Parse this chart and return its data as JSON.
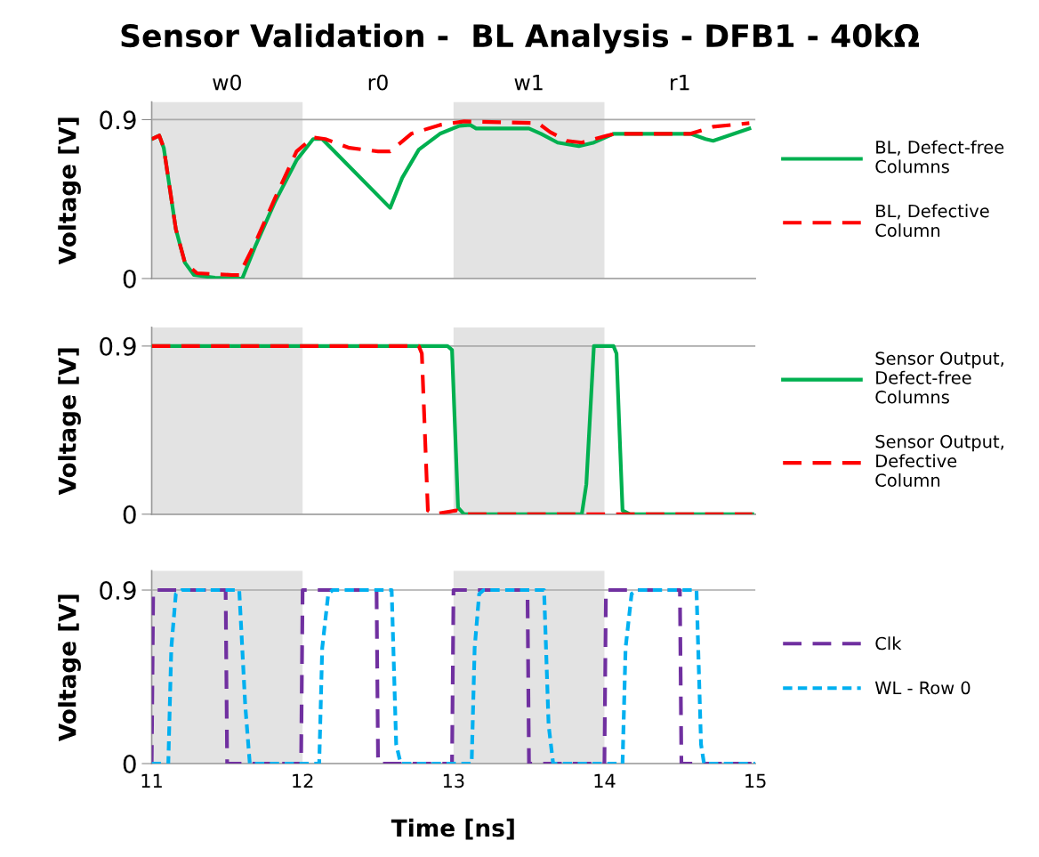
{
  "chart_data": [
    {
      "type": "line",
      "title": "Sensor Validation -  BL Analysis - DFB1 - 40kΩ",
      "ylabel": "Voltage [V]",
      "xlim": [
        11,
        15
      ],
      "ylim": [
        0,
        1
      ],
      "yticks": [
        0,
        0.9
      ],
      "tick_labels": "y",
      "grid": "y",
      "legend": "right",
      "bands": [
        {
          "axis": "x",
          "from": 11,
          "to": 12,
          "label": "w0",
          "color": "#e3e3e3"
        },
        {
          "axis": "x",
          "from": 13,
          "to": 14,
          "label": "w1",
          "color": "#e3e3e3"
        }
      ],
      "annotations": [
        "r0",
        "r1"
      ],
      "series": [
        {
          "name": "BL, Defect-free\nColumns",
          "color": "#00b050",
          "line_style": "solid",
          "x": [
            11.0,
            11.05,
            11.08,
            11.12,
            11.16,
            11.22,
            11.28,
            11.42,
            11.54,
            11.6,
            11.69,
            11.82,
            11.96,
            12.07,
            12.13,
            12.58,
            12.66,
            12.77,
            12.91,
            13.04,
            13.11,
            13.15,
            13.5,
            13.58,
            13.69,
            13.83,
            13.93,
            14.06,
            14.57,
            14.67,
            14.72,
            14.96
          ],
          "values": [
            0.79,
            0.81,
            0.74,
            0.51,
            0.28,
            0.09,
            0.02,
            0.005,
            0.0,
            0.0,
            0.19,
            0.44,
            0.67,
            0.79,
            0.79,
            0.4,
            0.57,
            0.73,
            0.82,
            0.865,
            0.87,
            0.85,
            0.85,
            0.82,
            0.77,
            0.75,
            0.77,
            0.82,
            0.82,
            0.79,
            0.78,
            0.85
          ]
        },
        {
          "name": "BL, Defective\nColumn",
          "color": "#ff0000",
          "line_style": "dashed",
          "x": [
            11.0,
            11.05,
            11.08,
            11.12,
            11.16,
            11.22,
            11.3,
            11.53,
            11.58,
            11.69,
            11.82,
            11.96,
            12.07,
            12.15,
            12.31,
            12.5,
            12.58,
            12.72,
            12.91,
            13.07,
            13.56,
            13.64,
            13.75,
            13.85,
            14.02,
            14.07,
            14.57,
            14.72,
            14.96
          ],
          "values": [
            0.79,
            0.81,
            0.74,
            0.51,
            0.28,
            0.09,
            0.03,
            0.02,
            0.02,
            0.21,
            0.46,
            0.72,
            0.8,
            0.79,
            0.74,
            0.72,
            0.72,
            0.82,
            0.87,
            0.89,
            0.88,
            0.83,
            0.78,
            0.77,
            0.81,
            0.82,
            0.82,
            0.86,
            0.88
          ]
        }
      ]
    },
    {
      "type": "line",
      "ylabel": "Voltage [V]",
      "xlim": [
        11,
        15
      ],
      "ylim": [
        0,
        1
      ],
      "yticks": [
        0,
        0.9
      ],
      "tick_labels": "y",
      "grid": "y",
      "legend": "right",
      "bands": [
        {
          "axis": "x",
          "from": 11,
          "to": 12,
          "color": "#e3e3e3"
        },
        {
          "axis": "x",
          "from": 13,
          "to": 14,
          "color": "#e3e3e3"
        }
      ],
      "series": [
        {
          "name": "Sensor Output,\nDefect-free\nColumns",
          "color": "#00b050",
          "line_style": "solid",
          "x": [
            11.0,
            12.96,
            12.99,
            13.03,
            13.07,
            13.85,
            13.88,
            13.93,
            14.06,
            14.08,
            14.12,
            14.17,
            14.98
          ],
          "values": [
            0.9,
            0.9,
            0.88,
            0.035,
            0.0,
            0.0,
            0.16,
            0.9,
            0.9,
            0.86,
            0.02,
            0.0,
            0.0
          ]
        },
        {
          "name": "Sensor Output,\nDefective\nColumn",
          "color": "#ff0000",
          "line_style": "dashed",
          "x": [
            11.0,
            12.77,
            12.79,
            12.83,
            12.87,
            13.02,
            13.07,
            14.98
          ],
          "values": [
            0.9,
            0.9,
            0.86,
            0.02,
            0.0,
            0.02,
            0.0,
            0.0
          ]
        }
      ]
    },
    {
      "type": "line",
      "xlabel": "Time [ns]",
      "ylabel": "Voltage [V]",
      "xlim": [
        11,
        15
      ],
      "xticks": [
        11,
        12,
        13,
        14,
        15
      ],
      "ylim": [
        0,
        1
      ],
      "yticks": [
        0,
        0.9
      ],
      "grid": "y",
      "legend": "right",
      "bands": [
        {
          "axis": "x",
          "from": 11,
          "to": 12,
          "color": "#e3e3e3"
        },
        {
          "axis": "x",
          "from": 13,
          "to": 14,
          "color": "#e3e3e3"
        }
      ],
      "series": [
        {
          "name": "Clk",
          "color": "#7030a0",
          "line_style": "dashed",
          "x": [
            11.0,
            11.01,
            11.49,
            11.5,
            11.99,
            12.0,
            12.49,
            12.5,
            12.99,
            13.0,
            13.49,
            13.5,
            14.0,
            14.01,
            14.5,
            14.51,
            15.0
          ],
          "values": [
            0,
            0.9,
            0.9,
            0,
            0,
            0.9,
            0.9,
            0,
            0,
            0.9,
            0.9,
            0,
            0,
            0.9,
            0.9,
            0,
            0
          ]
        },
        {
          "name": "WL - Row 0",
          "color": "#00b0f0",
          "line_style": "dotted",
          "x": [
            11.0,
            11.11,
            11.13,
            11.16,
            11.2,
            11.58,
            11.62,
            11.65,
            12.11,
            12.13,
            12.17,
            12.2,
            12.59,
            12.62,
            12.65,
            13.12,
            13.14,
            13.17,
            13.2,
            13.6,
            13.63,
            13.66,
            14.12,
            14.14,
            14.18,
            14.22,
            14.61,
            14.64,
            14.66,
            15.0
          ],
          "values": [
            0,
            0,
            0.6,
            0.88,
            0.9,
            0.9,
            0.3,
            0,
            0,
            0.6,
            0.88,
            0.9,
            0.9,
            0.1,
            0,
            0,
            0.6,
            0.88,
            0.9,
            0.9,
            0.2,
            0,
            0,
            0.6,
            0.88,
            0.9,
            0.9,
            0.1,
            0,
            0
          ]
        }
      ]
    }
  ]
}
